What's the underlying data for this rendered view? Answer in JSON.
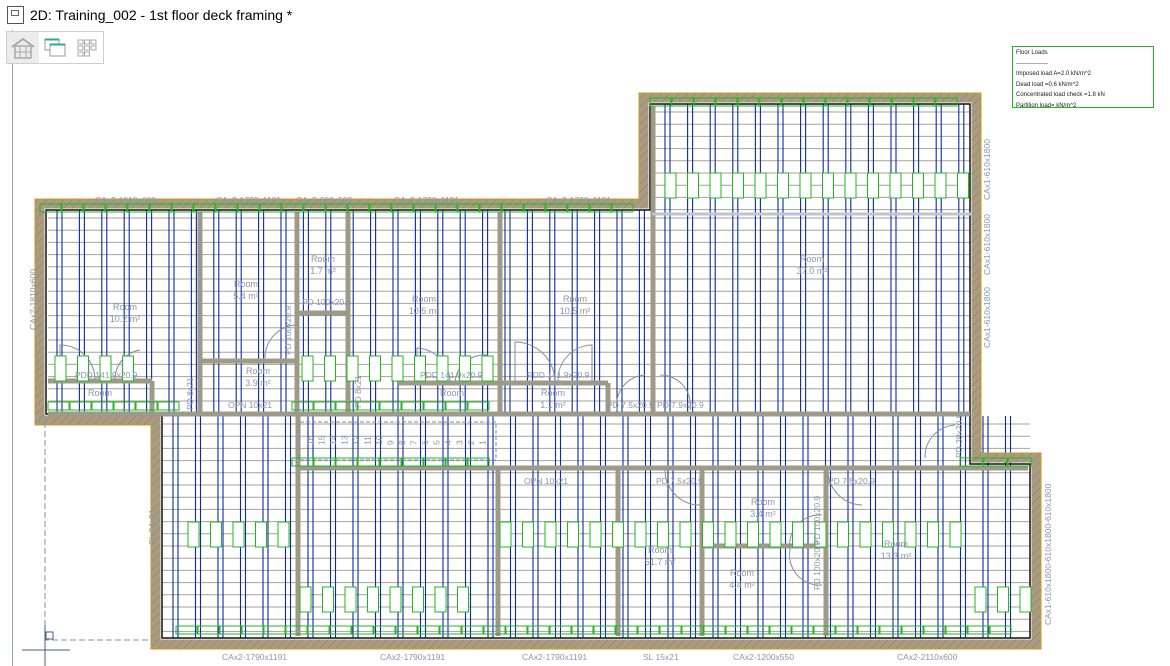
{
  "window": {
    "title": "2D: Training_002 - 1st floor deck framing *"
  },
  "toolbar": {
    "buttons": [
      {
        "name": "3d-house-view",
        "icon": "house-icon",
        "active": true
      },
      {
        "name": "cascade-windows",
        "icon": "windows-cascade-icon",
        "active": false
      },
      {
        "name": "tile-windows",
        "icon": "grid-tiles-icon",
        "active": false
      }
    ]
  },
  "legend": {
    "title": "Floor Loads",
    "separator": "----------------",
    "lines": [
      "Imposed load A=2.0 kN/m^2",
      "Dead load =0.6 kN/m^2",
      "Concentrated load check =1.8 kN",
      "Partition load= kN/m^2"
    ]
  },
  "colors": {
    "joist": "#0a2aa8",
    "wall": "#9e9a88",
    "tag": "#1fb81f",
    "label": "#8796ad",
    "hatch": "#d0701a"
  },
  "plan": {
    "room_word": "Room",
    "rooms": [
      "10.2 m²",
      "5.4 m²",
      "1.7 m²",
      "10.5 m²",
      "10.5 m²",
      "37.0 m²",
      "3.9 m²",
      "",
      "",
      "1.1 m²",
      "3.4 m²",
      "51.7 m²",
      "4.4 m²",
      "13.3 m²"
    ],
    "top_labels": [
      "CAx2-1810x600",
      "CAx2-1790x1191",
      "CAx2-600x590",
      "CAx2-1790x1191",
      "CAx2-1790x1191"
    ],
    "right_labels": [
      "CAx1-610x1800",
      "CAx1-610x1800",
      "CAx1-610x1800",
      "CAx1-610x1800-610x1800-610x1800"
    ],
    "left_label": "CAx2-1810x600",
    "bottom_labels": [
      "CAx2-1790x1191",
      "CAx2-1790x1191",
      "CAx2-1790x1191",
      "SL 15x21",
      "CAx2-1200x550",
      "CAx2-2110x600"
    ],
    "openings": [
      "PD 100x20.9",
      "PD 100x20.9",
      "PDD 141.9x20.9",
      "PDD 141.9x20.9",
      "PDD 141.9x20.9",
      "PD 8x21",
      "PD 8x21",
      "OPN 10x21",
      "PD 7.5x20.9",
      "PD 7.9x20.9",
      "OPN 10x21",
      "PD 7.5x20.9",
      "PD 7.5x20.9",
      "PD 100x20.9",
      "PD 100x20.9",
      "PD 39x20.9",
      "SL 24x21"
    ],
    "stair_steps": [
      "16",
      "15",
      "14",
      "13",
      "12",
      "11",
      "10",
      "9",
      "8",
      "7",
      "6",
      "5",
      "4",
      "3",
      "2",
      "1"
    ]
  }
}
